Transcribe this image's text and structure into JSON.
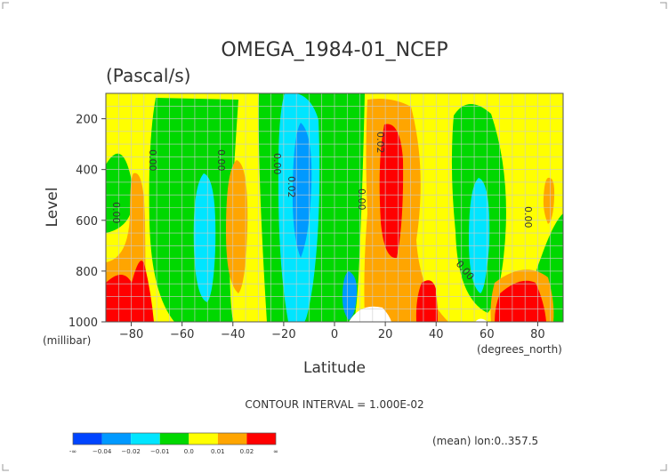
{
  "chart_data": {
    "type": "heatmap",
    "title": "OMEGA_1984-01_NCEP",
    "subtitle": "(Pascal/s)",
    "xlabel": "Latitude",
    "ylabel": "Level",
    "x_unit": "(degrees_north)",
    "y_unit": "(millibar)",
    "xlim": [
      -90,
      90
    ],
    "ylim": [
      1000,
      100
    ],
    "x_ticks": [
      "-80",
      "-60",
      "-40",
      "-20",
      "0",
      "20",
      "40",
      "60",
      "80"
    ],
    "y_ticks": [
      "200",
      "400",
      "600",
      "800",
      "1000"
    ],
    "note": "CONTOUR INTERVAL = 1.000E-02",
    "footer": "(mean) lon:0..357.5",
    "contour_labels": [
      "0.00",
      "0.00",
      "0.00",
      "0.00",
      "0.02",
      "0.00",
      "0.02",
      "0.00",
      "0.00"
    ],
    "legend": {
      "colors": [
        "#0044ff",
        "#0099ff",
        "#00e5ff",
        "#00d800",
        "#ffff00",
        "#ffa500",
        "#ff0000"
      ],
      "labels": [
        "-∞",
        "−0.04",
        "−0.02",
        "−0.01",
        "0.0",
        "0.01",
        "0.02",
        "∞"
      ]
    },
    "grid": true
  }
}
